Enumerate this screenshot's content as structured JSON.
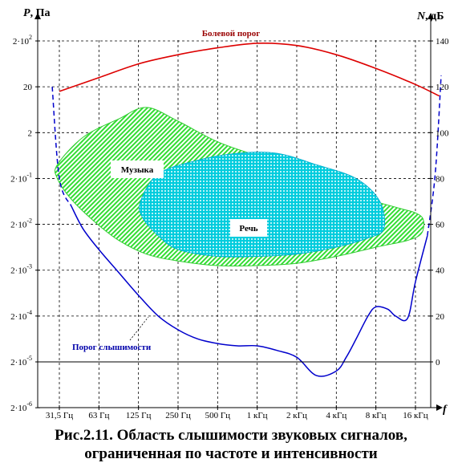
{
  "chart_data": {
    "type": "area",
    "left_axis": {
      "label_var": "P",
      "label_unit": ", Па",
      "ticks": [
        {
          "mant": "2·10",
          "exp": "-6"
        },
        {
          "mant": "2·10",
          "exp": "-5"
        },
        {
          "mant": "2·10",
          "exp": "-4"
        },
        {
          "mant": "2·10",
          "exp": "-3"
        },
        {
          "mant": "2·10",
          "exp": "-2"
        },
        {
          "mant": "2·10",
          "exp": "-1"
        },
        {
          "mant": "2",
          "exp": ""
        },
        {
          "mant": "20",
          "exp": ""
        },
        {
          "mant": "2·10",
          "exp": "2"
        }
      ]
    },
    "right_axis": {
      "label_var": "N",
      "label_unit": ", дБ",
      "ticks": [
        "0",
        "20",
        "40",
        "60",
        "80",
        "100",
        "120",
        "140"
      ],
      "ylim": [
        -20,
        140
      ]
    },
    "x_axis": {
      "label": "f",
      "categories": [
        "31,5 Гц",
        "63 Гц",
        "125 Гц",
        "250 Гц",
        "500 Гц",
        "1 кГц",
        "2 кГц",
        "4 кГц",
        "8 кГц",
        "16 кГц"
      ],
      "scale": "log2 octaves"
    },
    "annotations": {
      "pain": "Болевой порог",
      "music": "Музыка",
      "speech": "Речь",
      "hearing": "Порог слышимости"
    },
    "caption": [
      "Рис.2.11. Область слышимости звуковых сигналов,",
      "ограниченная по частоте и интенсивности"
    ],
    "series": [
      {
        "name": "Болевой порог",
        "color": "#dd0000",
        "x": [
          0.0,
          1.0,
          2.0,
          3.0,
          4.0,
          5.0,
          6.0,
          7.0,
          8.0,
          9.0,
          9.6
        ],
        "y": [
          118,
          124,
          130,
          134,
          137,
          139,
          138,
          134,
          128,
          121,
          116
        ]
      },
      {
        "name": "Порог слышимости",
        "color": "#0000cc",
        "x": [
          -0.18,
          0.0,
          0.3,
          0.6,
          1.0,
          1.5,
          2.0,
          2.5,
          3.0,
          3.5,
          4.0,
          4.5,
          5.0,
          5.5,
          6.0,
          6.5,
          7.0,
          7.25,
          7.5,
          7.8,
          8.0,
          8.3,
          8.5,
          8.8,
          9.0,
          9.3,
          9.5,
          9.65
        ],
        "y": [
          120,
          80,
          68,
          58,
          49,
          39,
          29,
          20,
          14,
          10,
          8,
          7,
          7,
          5,
          2,
          -6,
          -4,
          2,
          10,
          20,
          24,
          23,
          20,
          19,
          35,
          55,
          82,
          125
        ]
      },
      {
        "name": "Музыка",
        "color": "#33cc33",
        "outline": [
          [
            -0.05,
            86
          ],
          [
            0.6,
            98
          ],
          [
            1.5,
            106
          ],
          [
            2.2,
            111
          ],
          [
            3.0,
            105
          ],
          [
            4.0,
            96
          ],
          [
            5.0,
            90
          ],
          [
            6.0,
            85
          ],
          [
            7.0,
            77
          ],
          [
            7.8,
            71
          ],
          [
            8.6,
            67
          ],
          [
            9.0,
            65
          ],
          [
            9.2,
            62
          ],
          [
            9.15,
            56
          ],
          [
            8.8,
            53
          ],
          [
            8.0,
            50
          ],
          [
            7.0,
            46
          ],
          [
            6.0,
            43
          ],
          [
            5.0,
            42
          ],
          [
            4.0,
            42
          ],
          [
            3.0,
            44
          ],
          [
            2.2,
            47
          ],
          [
            1.5,
            53
          ],
          [
            0.9,
            61
          ],
          [
            0.3,
            71
          ],
          [
            -0.05,
            80
          ]
        ]
      },
      {
        "name": "Речь",
        "color": "#00ccdd",
        "outline": [
          [
            2.05,
            70
          ],
          [
            2.5,
            82
          ],
          [
            3.5,
            88
          ],
          [
            4.5,
            91
          ],
          [
            5.5,
            91
          ],
          [
            6.5,
            86
          ],
          [
            7.5,
            80
          ],
          [
            8.1,
            70
          ],
          [
            8.2,
            58
          ],
          [
            7.8,
            54
          ],
          [
            7.0,
            50
          ],
          [
            6.0,
            47
          ],
          [
            5.0,
            46
          ],
          [
            4.0,
            46
          ],
          [
            3.0,
            49
          ],
          [
            2.5,
            55
          ],
          [
            2.1,
            63
          ]
        ]
      }
    ]
  }
}
